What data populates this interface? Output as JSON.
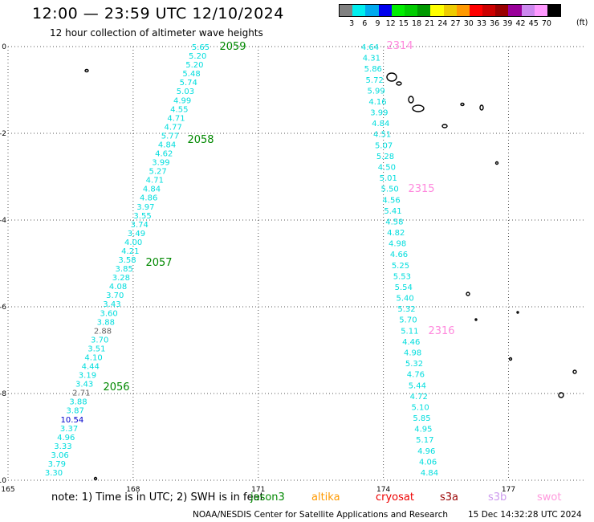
{
  "header": {
    "title": "12:00 — 23:59 UTC 12/10/2024",
    "subtitle": "12 hour collection of altimeter wave heights"
  },
  "legend": {
    "colors": [
      "#808080",
      "#00eeee",
      "#00aaee",
      "#0000ee",
      "#00ee00",
      "#00cc00",
      "#009900",
      "#ffff00",
      "#eecc00",
      "#ff9900",
      "#ff0000",
      "#cc0000",
      "#990000",
      "#990099",
      "#cc88ee",
      "#ff99ff",
      "#000000"
    ],
    "labels": [
      "3",
      "6",
      "9",
      "12",
      "15",
      "18",
      "21",
      "24",
      "27",
      "30",
      "33",
      "36",
      "39",
      "42",
      "45",
      "70"
    ],
    "unit": "(ft)"
  },
  "map": {
    "lon_ticks": [
      "165",
      "168",
      "171",
      "174",
      "177"
    ],
    "lat_ticks": [
      "0",
      "-2",
      "-4",
      "-6",
      "-8",
      "-10"
    ],
    "x_range": [
      165,
      178.8
    ],
    "y_range": [
      -10,
      0
    ],
    "passes": [
      {
        "id": "2059",
        "color": "#008800"
      },
      {
        "id": "2058",
        "color": "#008800"
      },
      {
        "id": "2057",
        "color": "#008800"
      },
      {
        "id": "2056",
        "color": "#008800"
      },
      {
        "id": "2314",
        "color": "#ff88dd"
      },
      {
        "id": "2315",
        "color": "#ff88dd"
      },
      {
        "id": "2316",
        "color": "#ff88dd"
      }
    ],
    "track_a": {
      "values": [
        "5.65",
        "5.20",
        "5.20",
        "5.48",
        "5.74",
        "5.03",
        "4.99",
        "4.55",
        "4.71",
        "4.77",
        "5.77",
        "4.84",
        "4.62",
        "3.99",
        "5.27",
        "4.71",
        "4.84",
        "4.86",
        "3.97",
        "3.55",
        "3.74",
        "3.49",
        "4.00",
        "4.21",
        "3.58",
        "3.85",
        "3.28",
        "4.08",
        "3.70",
        "3.43",
        "3.60",
        "3.88",
        "2.88",
        "3.70",
        "3.51",
        "4.10",
        "4.44",
        "3.19",
        "3.43",
        "2.71",
        "3.88",
        "3.87",
        "10.54",
        "3.37",
        "4.96",
        "3.33",
        "3.06",
        "3.79",
        "3.30"
      ],
      "colors": {
        "25": "#00cccc"
      },
      "special": {
        "32": "#666666",
        "39": "#666666",
        "42": "#0000cc"
      }
    },
    "track_b": {
      "values": [
        "4.64",
        "4.31",
        "5.86",
        "5.72",
        "5.99",
        "4.16",
        "3.99",
        "4.84",
        "4.51",
        "5.07",
        "5.28",
        "4.50",
        "5.01",
        "5.50",
        "4.56",
        "5.41",
        "4.58",
        "4.82",
        "4.98",
        "4.66",
        "5.25",
        "5.53",
        "5.54",
        "5.40",
        "5.32",
        "5.70",
        "5.11",
        "4.46",
        "4.98",
        "5.32",
        "4.76",
        "5.44",
        "4.72",
        "5.10",
        "5.85",
        "4.95",
        "5.17",
        "4.96",
        "4.06",
        "4.84"
      ]
    }
  },
  "footer": {
    "note": "note:  1) Time is in UTC; 2) SWH is in feet",
    "satellites": [
      {
        "name": "jason3",
        "color": "#008800"
      },
      {
        "name": "altika",
        "color": "#ff9900"
      },
      {
        "name": "cryosat",
        "color": "#ee0000"
      },
      {
        "name": "s3a",
        "color": "#990000"
      },
      {
        "name": "s3b",
        "color": "#cc99ee"
      },
      {
        "name": "swot",
        "color": "#ff99dd"
      }
    ],
    "credit": "NOAA/NESDIS Center for Satellite Applications and Research",
    "stamp": "15 Dec 14:32:28 UTC 2024"
  }
}
